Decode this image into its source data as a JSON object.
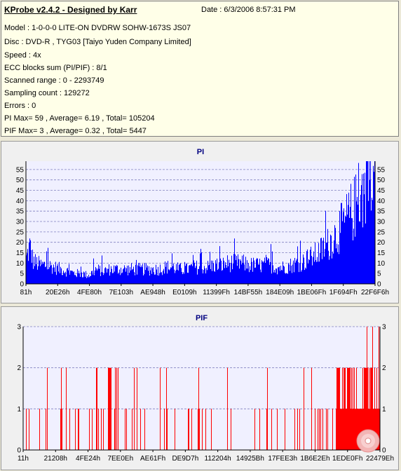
{
  "header": {
    "title": "KProbe v2.4.2 - Designed by Karr",
    "date": "Date : 6/3/2006 8:57:31 PM"
  },
  "info_lines": [
    "Model : 1-0-0-0 LITE-ON DVDRW SOHW-1673S JS07",
    "Disc : DVD-R , TYG03 [Taiyo Yuden Company Limited]",
    "Speed : 4x",
    "ECC blocks sum (PI/PIF) : 8/1",
    "Scanned range : 0 - 2293749",
    "Sampling count : 129272",
    "Errors : 0",
    "PI Max= 59 , Average= 6.19 , Total= 105204",
    "PIF Max= 3 , Average= 0.32 , Total= 5447"
  ],
  "colors": {
    "pi_bar": "#0000ff",
    "pif_bar": "#ff0000",
    "plot_bg": "#f0f0ff",
    "title": "#000080"
  },
  "chart_data": [
    {
      "type": "bar",
      "title": "PI",
      "xlabel": "",
      "ylabel": "",
      "x_ticks": [
        "81h",
        "20E26h",
        "4FE80h",
        "7E103h",
        "AE948h",
        "E0109h",
        "11399Fh",
        "14BF55h",
        "184E09h",
        "1BE06Fh",
        "1F694Fh",
        "22F6F6h"
      ],
      "y_ticks": [
        0,
        5,
        10,
        15,
        20,
        25,
        30,
        35,
        40,
        45,
        50,
        55
      ],
      "ylim": [
        0,
        59
      ],
      "grid": true,
      "profile": [
        [
          0,
          12
        ],
        [
          1,
          18
        ],
        [
          2,
          11
        ],
        [
          4,
          9
        ],
        [
          6,
          9
        ],
        [
          8,
          8
        ],
        [
          10,
          7
        ],
        [
          12,
          6
        ],
        [
          14,
          5
        ],
        [
          16,
          5
        ],
        [
          18,
          4
        ],
        [
          20,
          7
        ],
        [
          22,
          6
        ],
        [
          24,
          7
        ],
        [
          26,
          7
        ],
        [
          28,
          7
        ],
        [
          30,
          7
        ],
        [
          32,
          7
        ],
        [
          34,
          7
        ],
        [
          36,
          7
        ],
        [
          38,
          7
        ],
        [
          40,
          8
        ],
        [
          42,
          8
        ],
        [
          44,
          7
        ],
        [
          46,
          7
        ],
        [
          48,
          8
        ],
        [
          50,
          8
        ],
        [
          52,
          8
        ],
        [
          54,
          9
        ],
        [
          56,
          9
        ],
        [
          58,
          10
        ],
        [
          60,
          10
        ],
        [
          62,
          10
        ],
        [
          64,
          9
        ],
        [
          66,
          9
        ],
        [
          68,
          9
        ],
        [
          70,
          9
        ],
        [
          72,
          8
        ],
        [
          74,
          8
        ],
        [
          76,
          9
        ],
        [
          78,
          10
        ],
        [
          80,
          11
        ],
        [
          82,
          13
        ],
        [
          84,
          15
        ],
        [
          86,
          18
        ],
        [
          88,
          22
        ],
        [
          90,
          26
        ],
        [
          92,
          31
        ],
        [
          94,
          36
        ],
        [
          96,
          42
        ],
        [
          97,
          47
        ],
        [
          98,
          51
        ],
        [
          99,
          57
        ],
        [
          100,
          52
        ]
      ]
    },
    {
      "type": "bar",
      "title": "PIF",
      "xlabel": "",
      "ylabel": "",
      "x_ticks": [
        "11h",
        "21208h",
        "4FE24h",
        "7EE0Eh",
        "AE61Fh",
        "DE9D7h",
        "112204h",
        "14925Bh",
        "17FEE3h",
        "1B6E2Eh",
        "1EDE0Fh",
        "22479Eh"
      ],
      "y_ticks": [
        0,
        1,
        2,
        3
      ],
      "ylim": [
        0,
        3
      ],
      "grid": true,
      "profile": [
        [
          0,
          0.25
        ],
        [
          10,
          0.25
        ],
        [
          16,
          0.5
        ],
        [
          22,
          0.5
        ],
        [
          24,
          1.5
        ],
        [
          26,
          1.2
        ],
        [
          28,
          0.3
        ],
        [
          40,
          0.25
        ],
        [
          60,
          0.25
        ],
        [
          80,
          0.3
        ],
        [
          87,
          0.5
        ],
        [
          88,
          1
        ],
        [
          100,
          1
        ]
      ]
    }
  ]
}
